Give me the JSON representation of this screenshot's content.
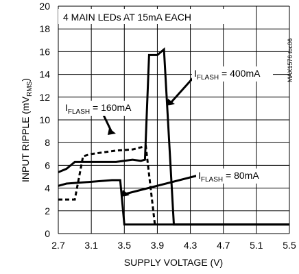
{
  "chart_data": {
    "type": "line",
    "title": "4 MAIN LEDs AT 15mA EACH",
    "xlabel": "SUPPLY VOLTAGE (V)",
    "ylabel": "INPUT RIPPLE (mV",
    "ylabel_sub": "RMS",
    "ylabel_close": ")",
    "side_label": "MAX1576 toc06",
    "xlim": [
      2.7,
      5.5
    ],
    "ylim": [
      0,
      20
    ],
    "x_ticks": [
      "2.7",
      "3.1",
      "3.5",
      "3.9",
      "4.3",
      "4.7",
      "5.1",
      "5.5"
    ],
    "y_ticks": [
      "0",
      "2",
      "4",
      "6",
      "8",
      "10",
      "12",
      "14",
      "16",
      "18",
      "20"
    ],
    "grid": true,
    "series": [
      {
        "name_main": "I",
        "name_sub": "FLASH",
        "name_rest": " = 400mA",
        "style": "solid",
        "points": [
          [
            2.7,
            5.4
          ],
          [
            2.8,
            5.7
          ],
          [
            2.9,
            6.3
          ],
          [
            3.0,
            6.3
          ],
          [
            3.4,
            6.3
          ],
          [
            3.6,
            6.5
          ],
          [
            3.7,
            6.4
          ],
          [
            3.75,
            6.5
          ],
          [
            3.8,
            15.7
          ],
          [
            3.9,
            15.7
          ],
          [
            3.98,
            16.2
          ],
          [
            4.1,
            0.8
          ],
          [
            5.5,
            0.8
          ]
        ]
      },
      {
        "name_main": "I",
        "name_sub": "FLASH",
        "name_rest": " = 160mA",
        "style": "dashed",
        "points": [
          [
            2.7,
            3.0
          ],
          [
            2.9,
            3.0
          ],
          [
            3.0,
            6.8
          ],
          [
            3.1,
            7.0
          ],
          [
            3.3,
            7.2
          ],
          [
            3.4,
            7.3
          ],
          [
            3.6,
            7.4
          ],
          [
            3.76,
            7.7
          ],
          [
            3.87,
            0.8
          ]
        ]
      },
      {
        "name_main": "I",
        "name_sub": "FLASH",
        "name_rest": " = 80mA",
        "style": "solid",
        "points": [
          [
            2.7,
            4.2
          ],
          [
            2.8,
            4.4
          ],
          [
            3.0,
            4.5
          ],
          [
            3.35,
            4.7
          ],
          [
            3.45,
            4.7
          ],
          [
            3.5,
            0.8
          ],
          [
            5.5,
            0.8
          ]
        ]
      }
    ]
  }
}
